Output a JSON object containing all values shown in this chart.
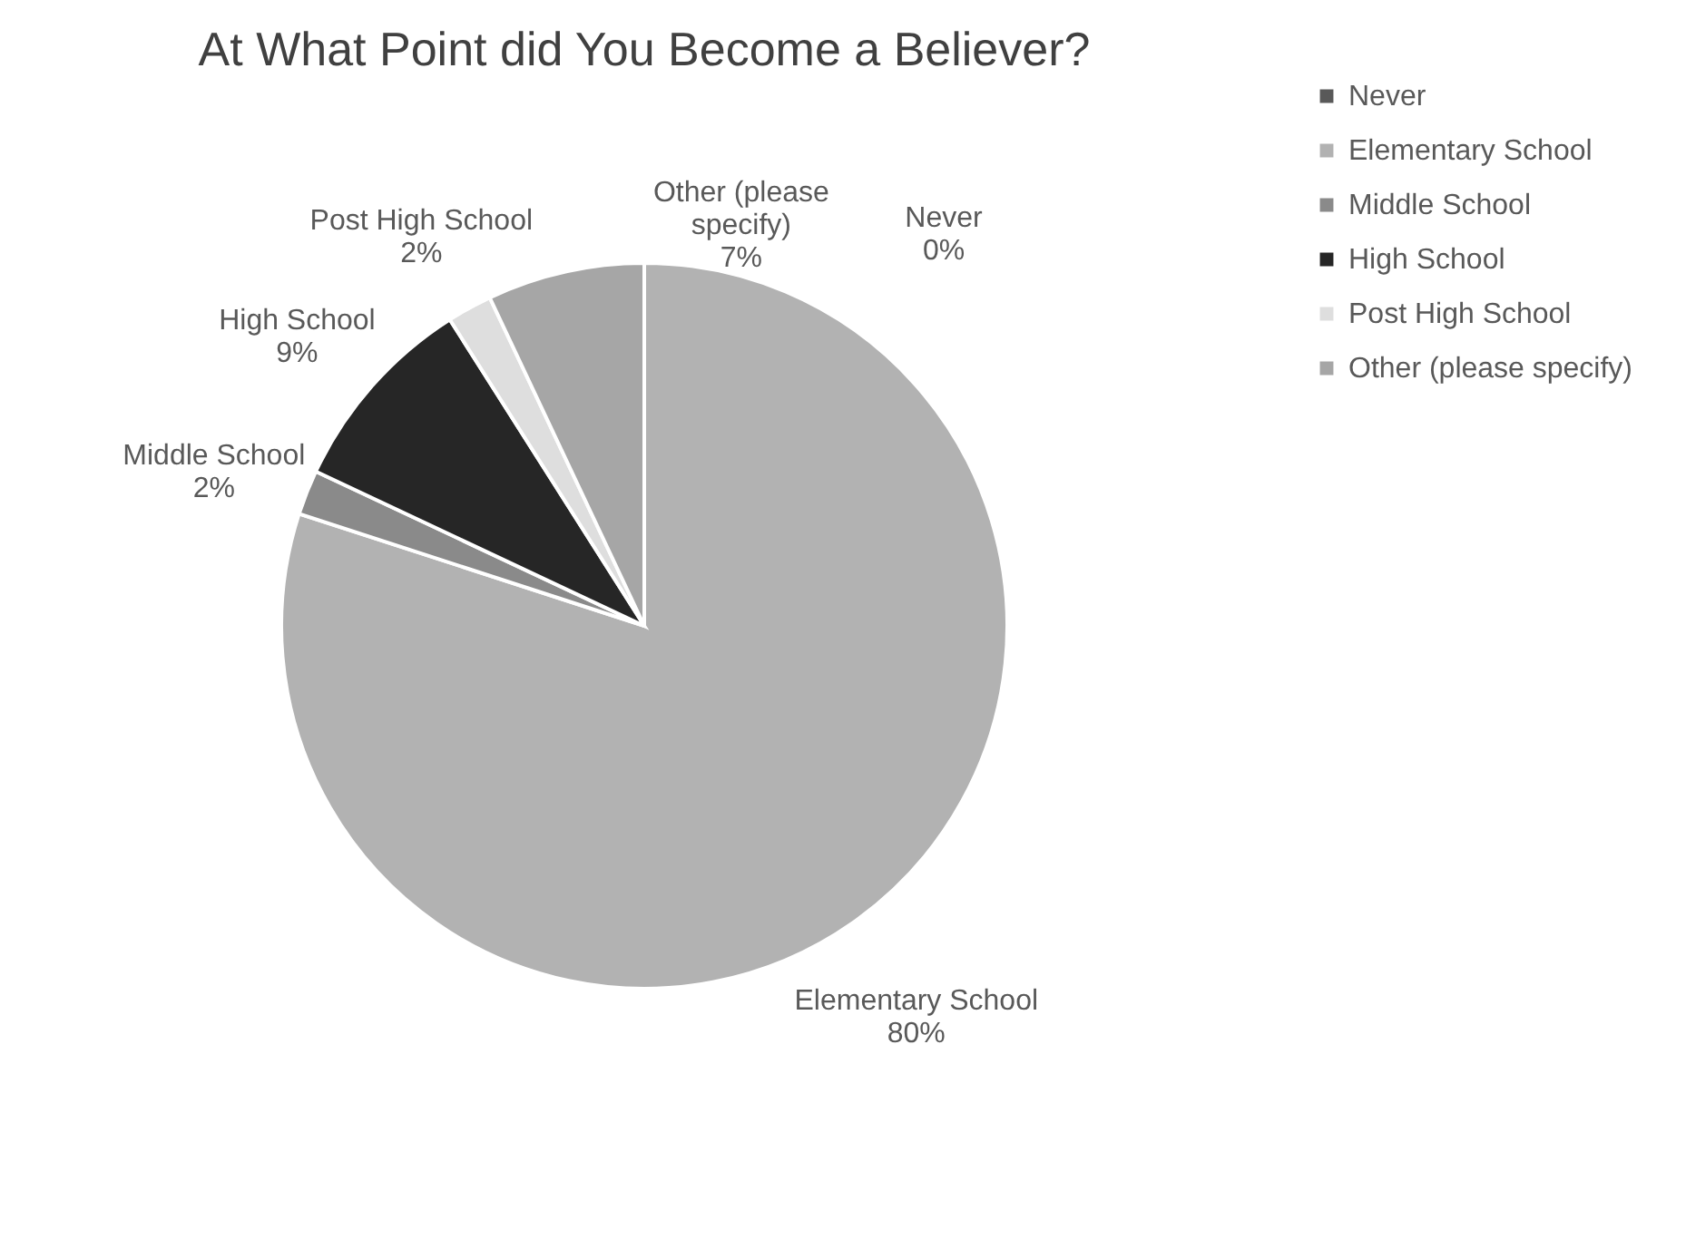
{
  "chart_data": {
    "type": "pie",
    "title": "At What Point did You Become a Believer?",
    "categories": [
      "Never",
      "Elementary School",
      "Middle School",
      "High School",
      "Post High School",
      "Other (please specify)"
    ],
    "values": [
      0,
      80,
      2,
      9,
      2,
      7
    ],
    "colors": [
      "#595959",
      "#b2b2b2",
      "#8a8a8a",
      "#262626",
      "#dedede",
      "#a6a6a6"
    ],
    "value_labels": [
      "0%",
      "80%",
      "2%",
      "9%",
      "2%",
      "7%"
    ],
    "legend": "right"
  }
}
